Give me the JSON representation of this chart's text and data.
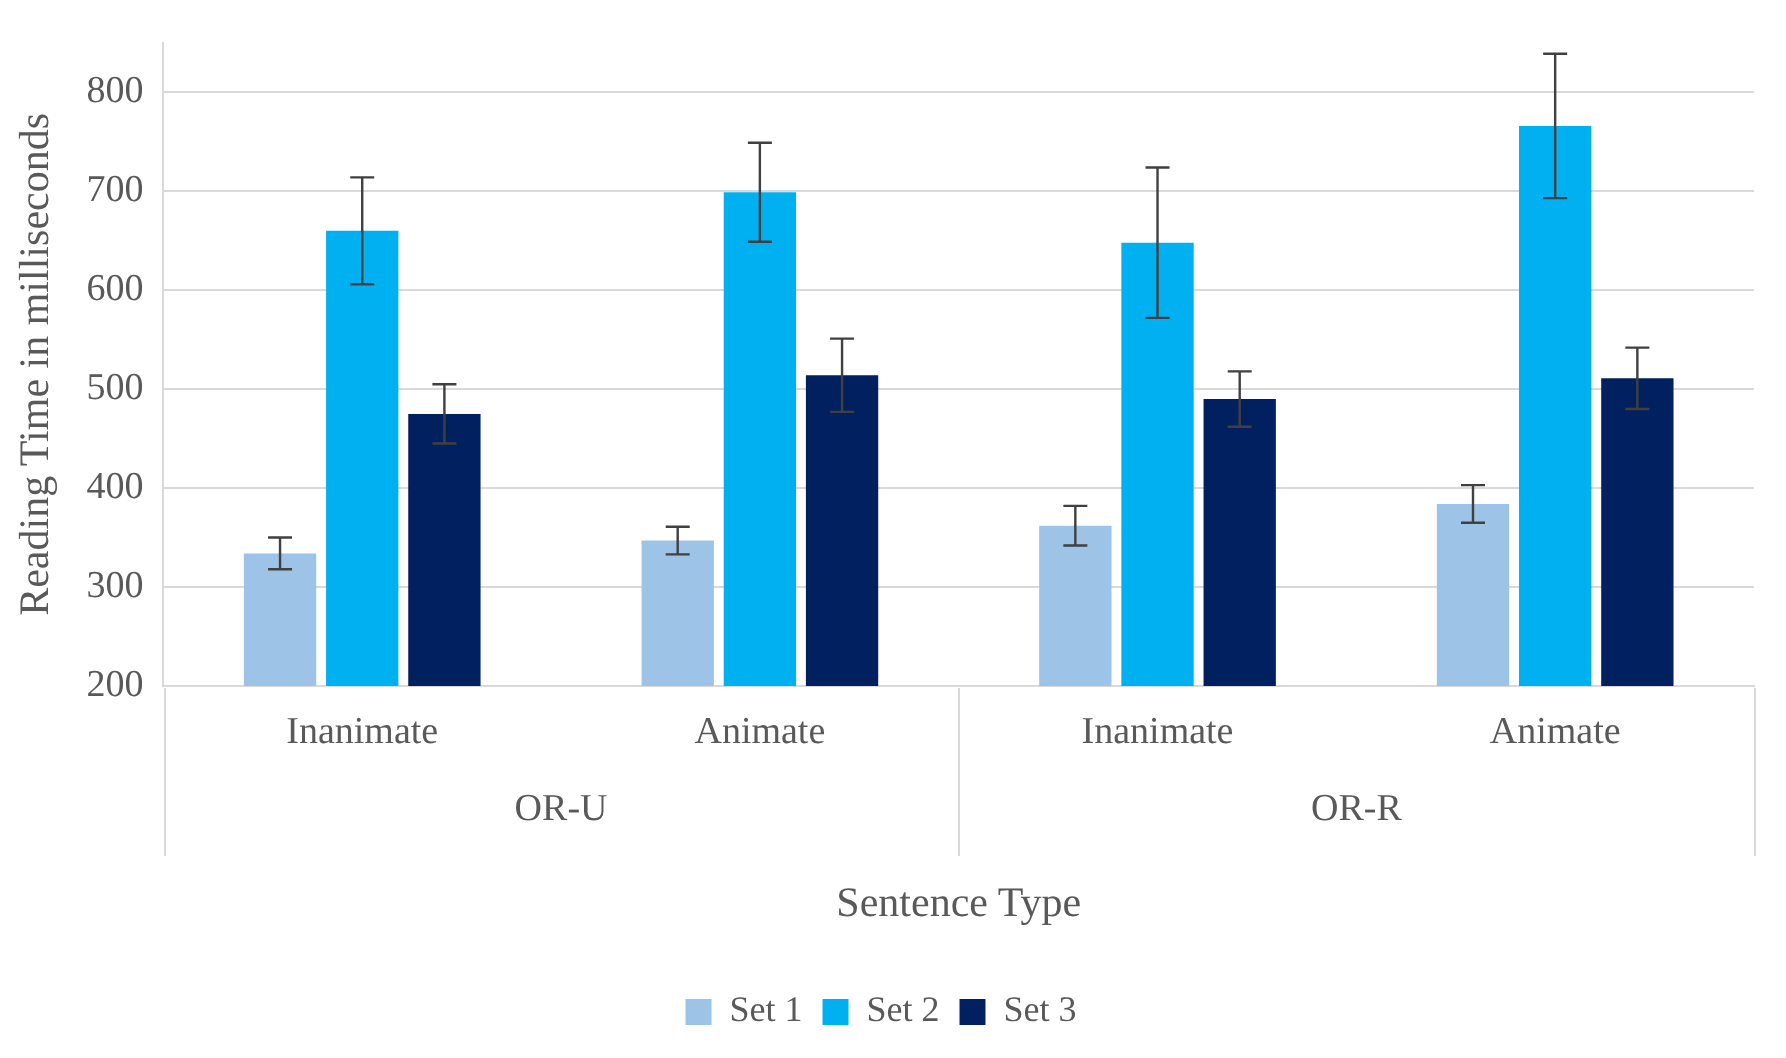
{
  "chart_data": {
    "type": "bar",
    "xlabel": "Sentence Type",
    "ylabel": "Reading Time in milliseconds",
    "categories": [
      "Inanimate",
      "Animate",
      "Inanimate",
      "Animate"
    ],
    "annotations": [
      "OR-U",
      "OR-R"
    ],
    "series": [
      {
        "name": "Set 1",
        "color": "#9dc3e6",
        "values": [
          334,
          347,
          362,
          384
        ],
        "errors": [
          16,
          14,
          20,
          19
        ]
      },
      {
        "name": "Set 2",
        "color": "#00b0f0",
        "values": [
          660,
          699,
          648,
          766
        ],
        "errors": [
          54,
          50,
          76,
          73
        ]
      },
      {
        "name": "Set 3",
        "color": "#002060",
        "values": [
          475,
          514,
          490,
          511
        ],
        "errors": [
          30,
          37,
          28,
          31
        ]
      }
    ],
    "ylim": [
      200,
      850
    ],
    "yticks": [
      200,
      300,
      400,
      500,
      600,
      700,
      800
    ],
    "grid": "y",
    "legend": "bottom"
  }
}
